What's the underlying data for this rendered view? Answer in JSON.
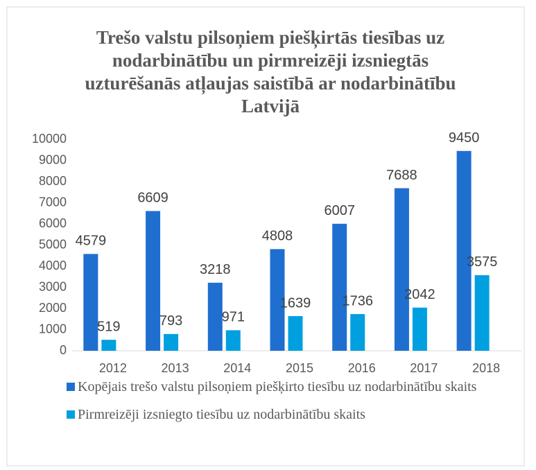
{
  "chart_data": {
    "type": "bar",
    "title": "Trešo valstu pilsoņiem piešķirtās tiesības uz nodarbinātību un pirmreizēji izsniegtās uzturēšanās atļaujas saistībā ar nodarbinātību Latvijā",
    "categories": [
      "2012",
      "2013",
      "2014",
      "2015",
      "2016",
      "2017",
      "2018"
    ],
    "series": [
      {
        "name": "Kopējais trešo valstu pilsoņiem piešķirto tiesību uz nodarbinātību skaits",
        "color": "#1f6fd0",
        "values": [
          4579,
          6609,
          3218,
          4808,
          6007,
          7688,
          9450
        ]
      },
      {
        "name": "Pirmreizēji izsniegto tiesību uz nodarbinātību  skaits",
        "color": "#00a0e0",
        "values": [
          519,
          793,
          971,
          1639,
          1736,
          2042,
          3575
        ]
      }
    ],
    "ylim": [
      0,
      10000
    ],
    "yticks": [
      0,
      1000,
      2000,
      3000,
      4000,
      5000,
      6000,
      7000,
      8000,
      9000,
      10000
    ],
    "grid": false,
    "legend": "bottom"
  }
}
